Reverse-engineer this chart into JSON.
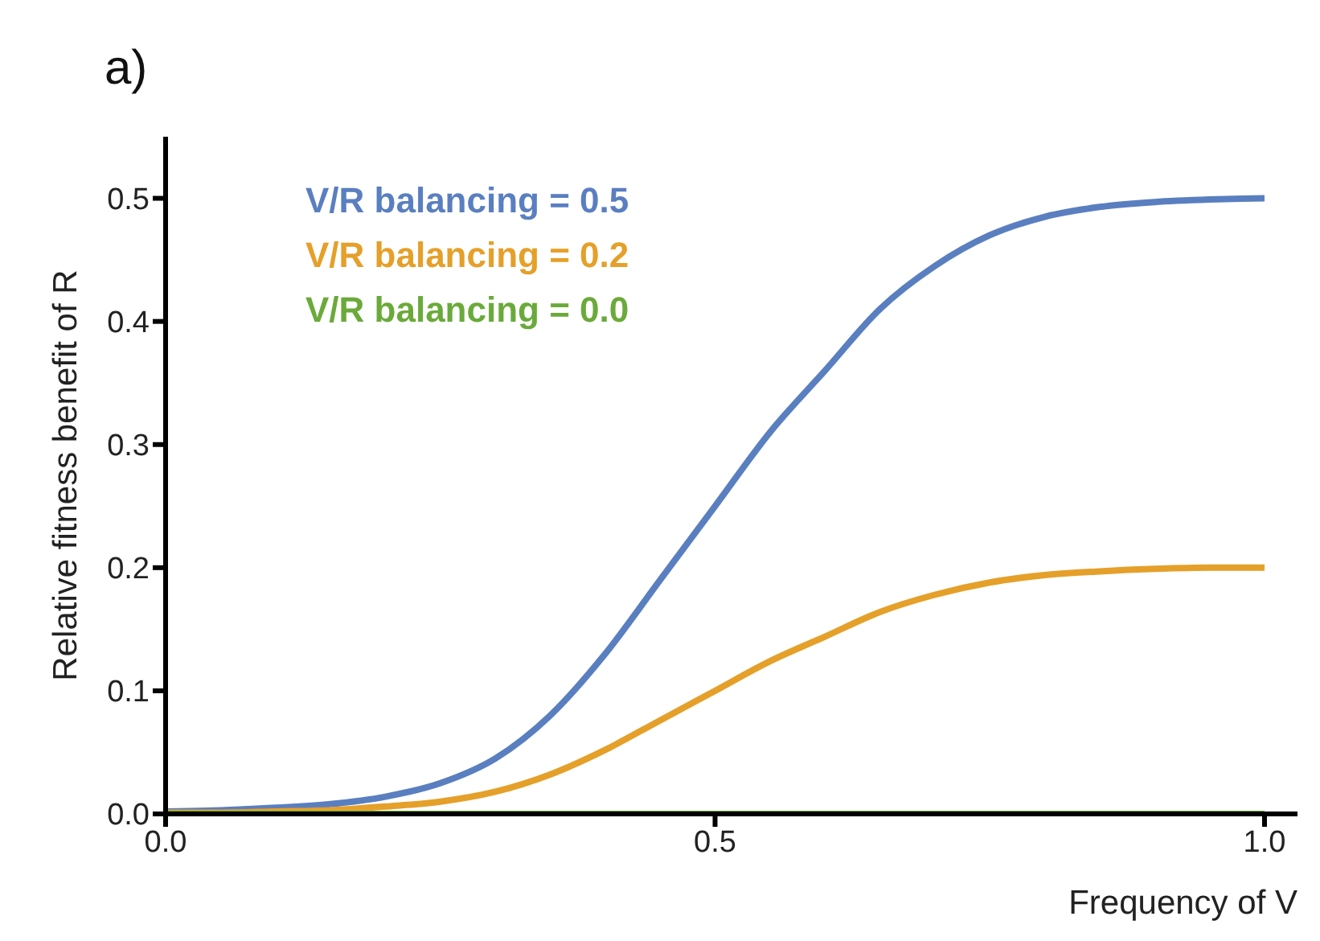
{
  "chart_data": {
    "type": "line",
    "title": "a)",
    "xlabel": "Frequency of V",
    "ylabel": "Relative fitness benefit of R",
    "x": [
      0,
      0.05,
      0.1,
      0.15,
      0.2,
      0.25,
      0.3,
      0.35,
      0.4,
      0.45,
      0.5,
      0.55,
      0.6,
      0.65,
      0.7,
      0.75,
      0.8,
      0.85,
      0.9,
      0.95,
      1.0
    ],
    "series": [
      {
        "name": "V/R balancing = 0.5",
        "color": "#5a7fc0",
        "values": [
          0.002,
          0.003,
          0.005,
          0.008,
          0.014,
          0.025,
          0.045,
          0.08,
          0.13,
          0.19,
          0.25,
          0.31,
          0.36,
          0.41,
          0.445,
          0.47,
          0.485,
          0.493,
          0.497,
          0.499,
          0.5
        ]
      },
      {
        "name": "V/R balancing = 0.2",
        "color": "#e5a02a",
        "values": [
          0.001,
          0.001,
          0.002,
          0.003,
          0.006,
          0.01,
          0.018,
          0.032,
          0.052,
          0.076,
          0.1,
          0.124,
          0.144,
          0.164,
          0.178,
          0.188,
          0.194,
          0.197,
          0.199,
          0.2,
          0.2
        ]
      },
      {
        "name": "V/R balancing = 0.0",
        "color": "#6aaa3a",
        "values": [
          0,
          0,
          0,
          0,
          0,
          0,
          0,
          0,
          0,
          0,
          0,
          0,
          0,
          0,
          0,
          0,
          0,
          0,
          0,
          0,
          0
        ]
      }
    ],
    "xlim": [
      0,
      1.03
    ],
    "xticks": [
      {
        "value": 0,
        "label": "0.0"
      },
      0.5,
      {
        "value": 1,
        "label": "1.0"
      }
    ],
    "ylim": [
      0,
      0.55
    ],
    "yticks": [
      {
        "value": 0,
        "label": "0.0"
      },
      0.1,
      0.2,
      0.3,
      0.4,
      0.5
    ],
    "legend": "top left",
    "grid": false,
    "marker": "none",
    "line_style": "solid"
  }
}
